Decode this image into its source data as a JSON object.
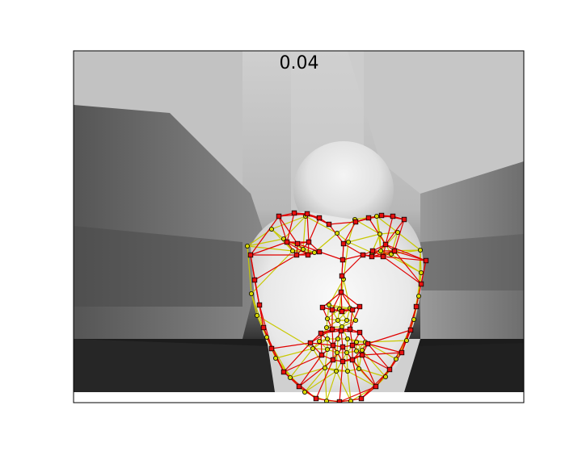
{
  "figure": {
    "title": "0.04"
  },
  "mesh_colors": {
    "predicted_edges": "#e00000",
    "reference_edges": "#c8c800",
    "predicted_markers": "#e81010",
    "reference_markers": "#d8d800",
    "marker_outline": "#000000"
  }
}
